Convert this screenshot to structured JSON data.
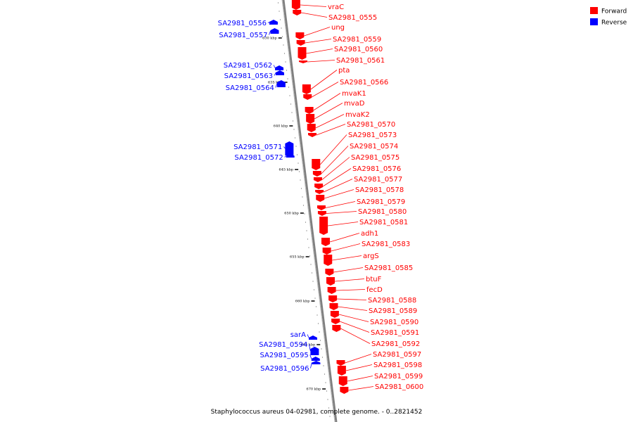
{
  "legend": [
    {
      "label": "Forward",
      "color": "#ff0000"
    },
    {
      "label": "Reverse",
      "color": "#0000ff"
    }
  ],
  "caption": "Staphylococcus aureus 04-02981, complete genome. - 0..2821452",
  "axis_ticks": [
    "630 kbp",
    "635 kbp",
    "640 kbp",
    "645 kbp",
    "650 kbp",
    "655 kbp",
    "660 kbp",
    "665 kbp",
    "670 kbp"
  ],
  "genes": [
    {
      "name": "vraC",
      "strand": "forward"
    },
    {
      "name": "SA2981_0555",
      "strand": "forward"
    },
    {
      "name": "SA2981_0556",
      "strand": "reverse"
    },
    {
      "name": "ung",
      "strand": "forward"
    },
    {
      "name": "SA2981_0557",
      "strand": "reverse"
    },
    {
      "name": "SA2981_0559",
      "strand": "forward"
    },
    {
      "name": "SA2981_0560",
      "strand": "forward"
    },
    {
      "name": "SA2981_0561",
      "strand": "forward"
    },
    {
      "name": "SA2981_0562",
      "strand": "reverse"
    },
    {
      "name": "pta",
      "strand": "forward"
    },
    {
      "name": "SA2981_0563",
      "strand": "reverse"
    },
    {
      "name": "SA2981_0566",
      "strand": "forward"
    },
    {
      "name": "SA2981_0564",
      "strand": "reverse"
    },
    {
      "name": "mvaK1",
      "strand": "forward"
    },
    {
      "name": "mvaD",
      "strand": "forward"
    },
    {
      "name": "mvaK2",
      "strand": "forward"
    },
    {
      "name": "SA2981_0570",
      "strand": "forward"
    },
    {
      "name": "SA2981_0573",
      "strand": "forward"
    },
    {
      "name": "SA2981_0571",
      "strand": "reverse"
    },
    {
      "name": "SA2981_0574",
      "strand": "forward"
    },
    {
      "name": "SA2981_0572",
      "strand": "reverse"
    },
    {
      "name": "SA2981_0575",
      "strand": "forward"
    },
    {
      "name": "SA2981_0576",
      "strand": "forward"
    },
    {
      "name": "SA2981_0577",
      "strand": "forward"
    },
    {
      "name": "SA2981_0578",
      "strand": "forward"
    },
    {
      "name": "SA2981_0579",
      "strand": "forward"
    },
    {
      "name": "SA2981_0580",
      "strand": "forward"
    },
    {
      "name": "SA2981_0581",
      "strand": "forward"
    },
    {
      "name": "adh1",
      "strand": "forward"
    },
    {
      "name": "SA2981_0583",
      "strand": "forward"
    },
    {
      "name": "argS",
      "strand": "forward"
    },
    {
      "name": "SA2981_0585",
      "strand": "forward"
    },
    {
      "name": "btuF",
      "strand": "forward"
    },
    {
      "name": "fecD",
      "strand": "forward"
    },
    {
      "name": "SA2981_0588",
      "strand": "forward"
    },
    {
      "name": "SA2981_0589",
      "strand": "forward"
    },
    {
      "name": "SA2981_0590",
      "strand": "forward"
    },
    {
      "name": "SA2981_0591",
      "strand": "forward"
    },
    {
      "name": "sarA",
      "strand": "reverse"
    },
    {
      "name": "SA2981_0592",
      "strand": "forward"
    },
    {
      "name": "SA2981_0594",
      "strand": "reverse"
    },
    {
      "name": "SA2981_0597",
      "strand": "forward"
    },
    {
      "name": "SA2981_0595",
      "strand": "reverse"
    },
    {
      "name": "SA2981_0598",
      "strand": "forward"
    },
    {
      "name": "SA2981_0596",
      "strand": "reverse"
    },
    {
      "name": "SA2981_0599",
      "strand": "forward"
    },
    {
      "name": "SA2981_0600",
      "strand": "forward"
    }
  ]
}
